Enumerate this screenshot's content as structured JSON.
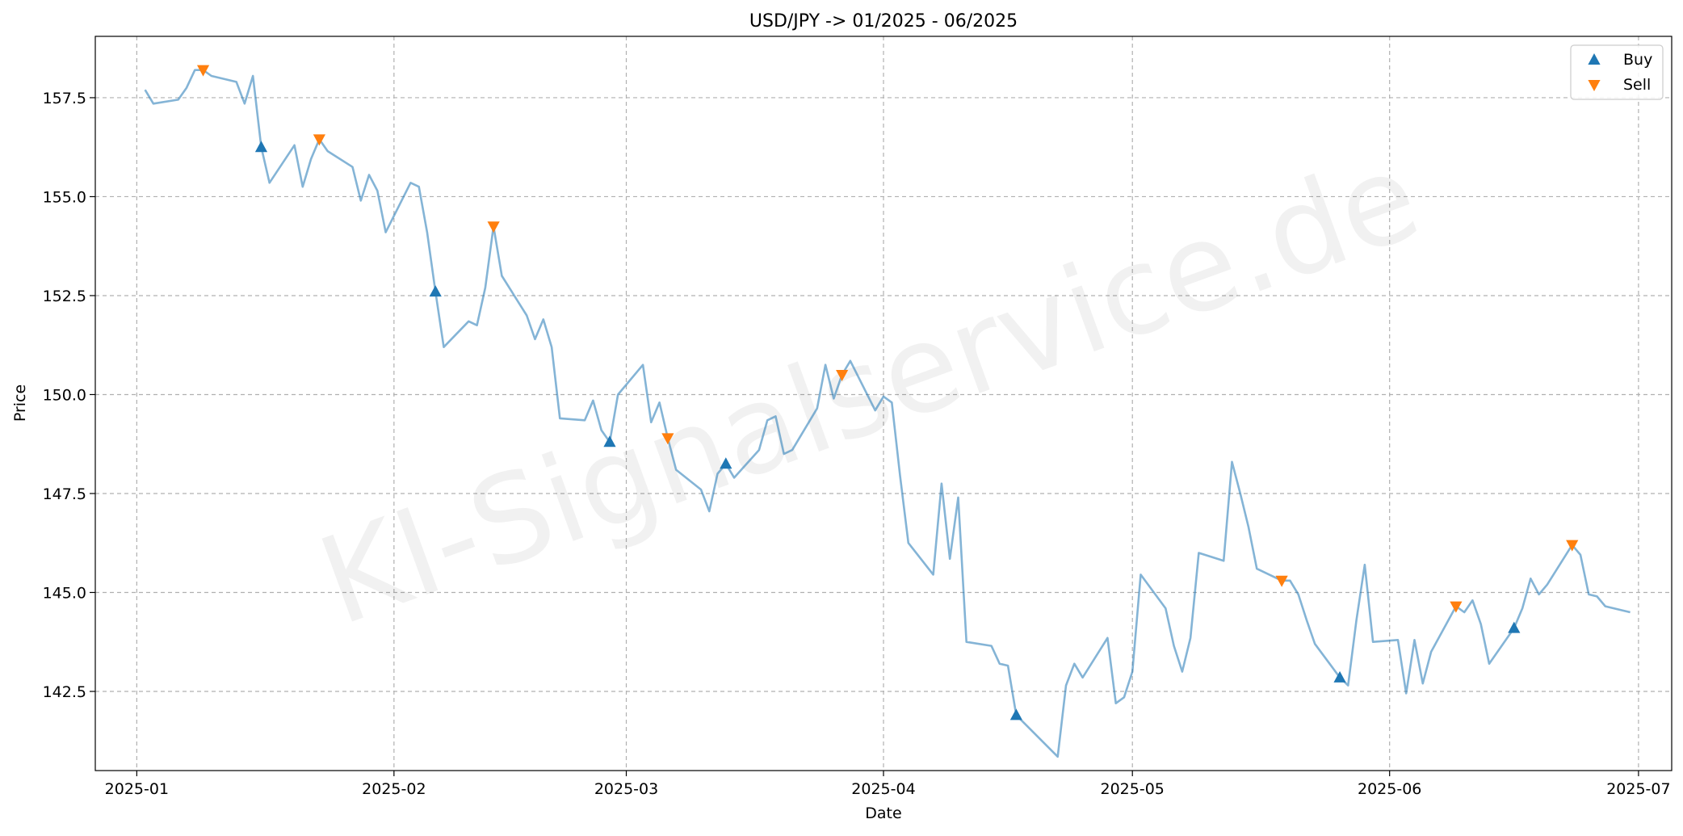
{
  "chart_data": {
    "type": "line",
    "title": "USD/JPY -> 01/2025 - 06/2025",
    "xlabel": "Date",
    "ylabel": "Price",
    "watermark": "KI-Signalservice.de",
    "grid": true,
    "legend_position": "top-right",
    "xlim": [
      "2024-12-27",
      "2025-07-05"
    ],
    "ylim": [
      140.5,
      159.05
    ],
    "x_ticks": [
      "2025-01-01",
      "2025-02-01",
      "2025-03-01",
      "2025-04-01",
      "2025-05-01",
      "2025-06-01",
      "2025-07-01"
    ],
    "x_tick_labels": [
      "2025-01",
      "2025-02",
      "2025-03",
      "2025-04",
      "2025-05",
      "2025-06",
      "2025-07"
    ],
    "y_ticks": [
      142.5,
      145.0,
      147.5,
      150.0,
      152.5,
      155.0,
      157.5
    ],
    "y_tick_labels": [
      "142.5",
      "145.0",
      "147.5",
      "150.0",
      "152.5",
      "155.0",
      "157.5"
    ],
    "colors": {
      "price": "#1f77b4",
      "buy": "#1f77b4",
      "sell": "#ff7f0e"
    },
    "price_series": [
      [
        "2025-01-02",
        157.7
      ],
      [
        "2025-01-03",
        157.35
      ],
      [
        "2025-01-06",
        157.45
      ],
      [
        "2025-01-07",
        157.75
      ],
      [
        "2025-01-08",
        158.2
      ],
      [
        "2025-01-09",
        158.2
      ],
      [
        "2025-01-10",
        158.05
      ],
      [
        "2025-01-13",
        157.9
      ],
      [
        "2025-01-14",
        157.35
      ],
      [
        "2025-01-15",
        158.05
      ],
      [
        "2025-01-16",
        156.25
      ],
      [
        "2025-01-17",
        155.35
      ],
      [
        "2025-01-20",
        156.3
      ],
      [
        "2025-01-21",
        155.25
      ],
      [
        "2025-01-22",
        155.95
      ],
      [
        "2025-01-23",
        156.45
      ],
      [
        "2025-01-24",
        156.15
      ],
      [
        "2025-01-27",
        155.75
      ],
      [
        "2025-01-28",
        154.9
      ],
      [
        "2025-01-29",
        155.55
      ],
      [
        "2025-01-30",
        155.15
      ],
      [
        "2025-01-31",
        154.1
      ],
      [
        "2025-02-03",
        155.35
      ],
      [
        "2025-02-04",
        155.25
      ],
      [
        "2025-02-05",
        154.1
      ],
      [
        "2025-02-06",
        152.6
      ],
      [
        "2025-02-07",
        151.2
      ],
      [
        "2025-02-10",
        151.85
      ],
      [
        "2025-02-11",
        151.75
      ],
      [
        "2025-02-12",
        152.7
      ],
      [
        "2025-02-13",
        154.25
      ],
      [
        "2025-02-14",
        153.0
      ],
      [
        "2025-02-17",
        152.0
      ],
      [
        "2025-02-18",
        151.4
      ],
      [
        "2025-02-19",
        151.9
      ],
      [
        "2025-02-20",
        151.2
      ],
      [
        "2025-02-21",
        149.4
      ],
      [
        "2025-02-24",
        149.35
      ],
      [
        "2025-02-25",
        149.85
      ],
      [
        "2025-02-26",
        149.1
      ],
      [
        "2025-02-27",
        148.8
      ],
      [
        "2025-02-28",
        150.0
      ],
      [
        "2025-03-03",
        150.75
      ],
      [
        "2025-03-04",
        149.3
      ],
      [
        "2025-03-05",
        149.8
      ],
      [
        "2025-03-06",
        148.9
      ],
      [
        "2025-03-07",
        148.1
      ],
      [
        "2025-03-10",
        147.6
      ],
      [
        "2025-03-11",
        147.05
      ],
      [
        "2025-03-12",
        148.0
      ],
      [
        "2025-03-13",
        148.25
      ],
      [
        "2025-03-14",
        147.9
      ],
      [
        "2025-03-17",
        148.6
      ],
      [
        "2025-03-18",
        149.35
      ],
      [
        "2025-03-19",
        149.45
      ],
      [
        "2025-03-20",
        148.5
      ],
      [
        "2025-03-21",
        148.6
      ],
      [
        "2025-03-24",
        149.65
      ],
      [
        "2025-03-25",
        150.75
      ],
      [
        "2025-03-26",
        149.9
      ],
      [
        "2025-03-27",
        150.5
      ],
      [
        "2025-03-28",
        150.85
      ],
      [
        "2025-03-31",
        149.6
      ],
      [
        "2025-04-01",
        149.95
      ],
      [
        "2025-04-02",
        149.8
      ],
      [
        "2025-04-03",
        147.95
      ],
      [
        "2025-04-04",
        146.25
      ],
      [
        "2025-04-07",
        145.45
      ],
      [
        "2025-04-08",
        147.75
      ],
      [
        "2025-04-09",
        145.85
      ],
      [
        "2025-04-10",
        147.4
      ],
      [
        "2025-04-11",
        143.75
      ],
      [
        "2025-04-14",
        143.65
      ],
      [
        "2025-04-15",
        143.2
      ],
      [
        "2025-04-16",
        143.15
      ],
      [
        "2025-04-17",
        141.9
      ],
      [
        "2025-04-22",
        140.85
      ],
      [
        "2025-04-23",
        142.65
      ],
      [
        "2025-04-24",
        143.2
      ],
      [
        "2025-04-25",
        142.85
      ],
      [
        "2025-04-28",
        143.85
      ],
      [
        "2025-04-29",
        142.2
      ],
      [
        "2025-04-30",
        142.35
      ],
      [
        "2025-05-01",
        143.0
      ],
      [
        "2025-05-02",
        145.45
      ],
      [
        "2025-05-05",
        144.6
      ],
      [
        "2025-05-06",
        143.65
      ],
      [
        "2025-05-07",
        143.0
      ],
      [
        "2025-05-08",
        143.85
      ],
      [
        "2025-05-09",
        146.0
      ],
      [
        "2025-05-12",
        145.8
      ],
      [
        "2025-05-13",
        148.3
      ],
      [
        "2025-05-14",
        147.5
      ],
      [
        "2025-05-15",
        146.65
      ],
      [
        "2025-05-16",
        145.6
      ],
      [
        "2025-05-19",
        145.3
      ],
      [
        "2025-05-20",
        145.3
      ],
      [
        "2025-05-21",
        144.95
      ],
      [
        "2025-05-22",
        144.3
      ],
      [
        "2025-05-23",
        143.7
      ],
      [
        "2025-05-26",
        142.85
      ],
      [
        "2025-05-27",
        142.65
      ],
      [
        "2025-05-28",
        144.3
      ],
      [
        "2025-05-29",
        145.7
      ],
      [
        "2025-05-30",
        143.75
      ],
      [
        "2025-06-02",
        143.8
      ],
      [
        "2025-06-03",
        142.45
      ],
      [
        "2025-06-04",
        143.8
      ],
      [
        "2025-06-05",
        142.7
      ],
      [
        "2025-06-06",
        143.5
      ],
      [
        "2025-06-09",
        144.65
      ],
      [
        "2025-06-10",
        144.5
      ],
      [
        "2025-06-11",
        144.8
      ],
      [
        "2025-06-12",
        144.2
      ],
      [
        "2025-06-13",
        143.2
      ],
      [
        "2025-06-16",
        144.1
      ],
      [
        "2025-06-17",
        144.6
      ],
      [
        "2025-06-18",
        145.35
      ],
      [
        "2025-06-19",
        144.95
      ],
      [
        "2025-06-20",
        145.2
      ],
      [
        "2025-06-23",
        146.2
      ],
      [
        "2025-06-24",
        145.95
      ],
      [
        "2025-06-25",
        144.95
      ],
      [
        "2025-06-26",
        144.9
      ],
      [
        "2025-06-27",
        144.65
      ],
      [
        "2025-06-30",
        144.5
      ]
    ],
    "buy_signals": [
      [
        "2025-01-16",
        156.25
      ],
      [
        "2025-02-06",
        152.6
      ],
      [
        "2025-02-27",
        148.8
      ],
      [
        "2025-03-13",
        148.25
      ],
      [
        "2025-04-17",
        141.9
      ],
      [
        "2025-05-26",
        142.85
      ],
      [
        "2025-06-16",
        144.1
      ]
    ],
    "sell_signals": [
      [
        "2025-01-09",
        158.2
      ],
      [
        "2025-01-23",
        156.45
      ],
      [
        "2025-02-13",
        154.25
      ],
      [
        "2025-03-06",
        148.9
      ],
      [
        "2025-03-27",
        150.5
      ],
      [
        "2025-05-19",
        145.3
      ],
      [
        "2025-06-09",
        144.65
      ],
      [
        "2025-06-23",
        146.2
      ]
    ],
    "legend": [
      {
        "label": "Buy",
        "marker": "triangle-up"
      },
      {
        "label": "Sell",
        "marker": "triangle-down"
      }
    ]
  }
}
